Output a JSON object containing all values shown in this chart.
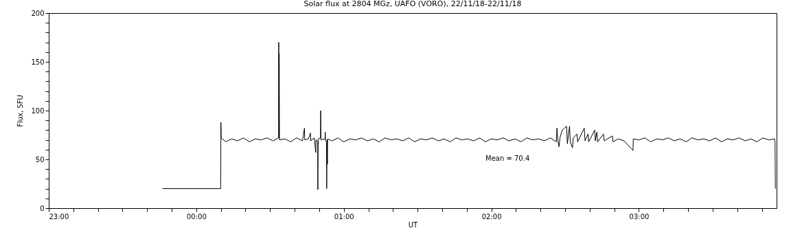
{
  "chart_data": {
    "type": "line",
    "title": "Solar flux at 2804 MGz, UAFO (VORO),  22/11/18-22/11/18",
    "xlabel": "UT",
    "ylabel": "Flux, SFU",
    "annotations": [
      "Mean =    70.4"
    ],
    "xlim": [
      "--11-21T23:00",
      "--11-22T03:56"
    ],
    "ylim": [
      0,
      200
    ],
    "xticks": [
      {
        "value": "--11-21T23:00",
        "label": "23:00"
      },
      {
        "value": "--11-21T23:10",
        "label": null
      },
      {
        "value": "--11-21T23:20",
        "label": null
      },
      {
        "value": "--11-21T23:30",
        "label": null
      },
      {
        "value": "--11-21T23:40",
        "label": null
      },
      {
        "value": "--11-21T23:50",
        "label": null
      },
      {
        "value": "--11-22T00:00",
        "label": "00:00"
      },
      {
        "value": "--11-22T00:10",
        "label": null
      },
      {
        "value": "--11-22T00:20",
        "label": null
      },
      {
        "value": "--11-22T00:30",
        "label": null
      },
      {
        "value": "--11-22T00:40",
        "label": null
      },
      {
        "value": "--11-22T00:50",
        "label": null
      },
      {
        "value": "--11-22T01:00",
        "label": "01:00"
      },
      {
        "value": "--11-22T01:10",
        "label": null
      },
      {
        "value": "--11-22T01:20",
        "label": null
      },
      {
        "value": "--11-22T01:30",
        "label": null
      },
      {
        "value": "--11-22T01:40",
        "label": null
      },
      {
        "value": "--11-22T01:50",
        "label": null
      },
      {
        "value": "--11-22T02:00",
        "label": "02:00"
      },
      {
        "value": "--11-22T02:10",
        "label": null
      },
      {
        "value": "--11-22T02:20",
        "label": null
      },
      {
        "value": "--11-22T02:30",
        "label": null
      },
      {
        "value": "--11-22T02:40",
        "label": null
      },
      {
        "value": "--11-22T02:50",
        "label": null
      },
      {
        "value": "--11-22T03:00",
        "label": "03:00"
      },
      {
        "value": "--11-22T03:10",
        "label": null
      },
      {
        "value": "--11-22T03:20",
        "label": null
      },
      {
        "value": "--11-22T03:30",
        "label": null
      },
      {
        "value": "--11-22T03:40",
        "label": null
      },
      {
        "value": "--11-22T03:50",
        "label": null
      }
    ],
    "yticks": [
      0,
      {
        "value": 10,
        "label": null
      },
      {
        "value": 20,
        "label": null
      },
      {
        "value": 30,
        "label": null
      },
      {
        "value": 40,
        "label": null
      },
      50,
      {
        "value": 60,
        "label": null
      },
      {
        "value": 70,
        "label": null
      },
      {
        "value": 80,
        "label": null
      },
      {
        "value": 90,
        "label": null
      },
      100,
      {
        "value": 110,
        "label": null
      },
      {
        "value": 120,
        "label": null
      },
      {
        "value": 130,
        "label": null
      },
      {
        "value": 140,
        "label": null
      },
      150,
      {
        "value": 160,
        "label": null
      },
      {
        "value": 170,
        "label": null
      },
      {
        "value": 180,
        "label": null
      },
      {
        "value": 190,
        "label": null
      },
      200
    ],
    "grid": false,
    "series": [
      {
        "color": "#000000",
        "x": [
          "--11-21T23:46:12",
          "--11-22T00:09:54",
          "--11-22T00:09:58",
          "--11-22T00:10:01",
          "--11-22T00:10:08",
          "--11-22T00:12:00",
          "--11-22T00:14:24",
          "--11-22T00:16:48",
          "--11-22T00:19:12",
          "--11-22T00:21:36",
          "--11-22T00:24:00",
          "--11-22T00:26:24",
          "--11-22T00:28:48",
          "--11-22T00:31:12",
          "--11-22T00:33:29",
          "--11-22T00:33:32",
          "--11-22T00:33:40",
          "--11-22T00:33:43",
          "--11-22T00:33:50",
          "--11-22T00:36:00",
          "--11-22T00:38:24",
          "--11-22T00:40:48",
          "--11-22T00:43:12",
          "--11-22T00:43:59",
          "--11-22T00:44:06",
          "--11-22T00:45:36",
          "--11-22T00:46:26",
          "--11-22T00:46:34",
          "--11-22T00:48:00",
          "--11-22T00:48:36",
          "--11-22T00:48:43",
          "--11-22T00:49:23",
          "--11-22T00:49:26",
          "--11-22T00:49:34",
          "--11-22T00:50:31",
          "--11-22T00:50:35",
          "--11-22T00:50:42",
          "--11-22T00:52:23",
          "--11-22T00:52:26",
          "--11-22T00:52:34",
          "--11-22T00:52:59",
          "--11-22T00:53:02",
          "--11-22T00:53:10",
          "--11-22T00:53:20",
          "--11-22T00:53:24",
          "--11-22T00:55:12",
          "--11-22T00:57:36",
          "--11-22T01:00:00",
          "--11-22T01:02:24",
          "--11-22T01:04:48",
          "--11-22T01:07:12",
          "--11-22T01:09:36",
          "--11-22T01:12:00",
          "--11-22T01:14:24",
          "--11-22T01:16:48",
          "--11-22T01:19:12",
          "--11-22T01:21:36",
          "--11-22T01:24:00",
          "--11-22T01:26:24",
          "--11-22T01:28:48",
          "--11-22T01:31:12",
          "--11-22T01:33:36",
          "--11-22T01:36:00",
          "--11-22T01:38:24",
          "--11-22T01:40:48",
          "--11-22T01:43:12",
          "--11-22T01:45:36",
          "--11-22T01:48:00",
          "--11-22T01:50:24",
          "--11-22T01:52:48",
          "--11-22T01:55:12",
          "--11-22T01:57:36",
          "--11-22T02:00:00",
          "--11-22T02:02:24",
          "--11-22T02:04:48",
          "--11-22T02:07:12",
          "--11-22T02:09:36",
          "--11-22T02:12:00",
          "--11-22T02:14:24",
          "--11-22T02:16:48",
          "--11-22T02:19:12",
          "--11-22T02:21:36",
          "--11-22T02:24:00",
          "--11-22T02:26:24",
          "--11-22T02:26:42",
          "--11-22T02:27:00",
          "--11-22T02:27:32",
          "--11-22T02:27:54",
          "--11-22T02:28:48",
          "--11-22T02:30:36",
          "--11-22T02:30:54",
          "--11-22T02:31:48",
          "--11-22T02:32:06",
          "--11-22T02:33:00",
          "--11-22T02:33:18",
          "--11-22T02:34:48",
          "--11-22T02:35:06",
          "--11-22T02:37:48",
          "--11-22T02:38:06",
          "--11-22T02:39:18",
          "--11-22T02:39:36",
          "--11-22T02:42:00",
          "--11-22T02:42:18",
          "--11-22T02:42:54",
          "--11-22T02:43:12",
          "--11-22T02:45:36",
          "--11-22T02:45:54",
          "--11-22T02:49:12",
          "--11-22T02:49:30",
          "--11-22T02:51:36",
          "--11-22T02:54:00",
          "--11-22T02:57:36",
          "--11-22T02:57:43",
          "--11-22T03:00:00",
          "--11-22T03:02:24",
          "--11-22T03:04:48",
          "--11-22T03:07:12",
          "--11-22T03:09:36",
          "--11-22T03:12:00",
          "--11-22T03:14:24",
          "--11-22T03:16:48",
          "--11-22T03:19:12",
          "--11-22T03:21:36",
          "--11-22T03:24:00",
          "--11-22T03:26:24",
          "--11-22T03:28:48",
          "--11-22T03:31:12",
          "--11-22T03:33:36",
          "--11-22T03:36:00",
          "--11-22T03:38:24",
          "--11-22T03:40:48",
          "--11-22T03:43:12",
          "--11-22T03:45:36",
          "--11-22T03:48:00",
          "--11-22T03:50:24",
          "--11-22T03:52:48",
          "--11-22T03:55:12",
          "--11-22T03:55:23",
          "--11-22T03:55:30"
        ],
        "values": [
          20,
          20,
          40,
          88,
          72,
          68,
          71,
          69,
          72,
          68,
          71,
          70,
          72,
          69,
          72,
          170,
          72,
          158,
          70,
          71,
          68,
          72,
          69,
          82,
          70,
          71,
          77,
          69,
          72,
          57,
          70,
          68,
          19,
          71,
          72,
          100,
          70,
          71,
          78,
          69,
          68,
          20,
          70,
          45,
          71,
          69,
          72,
          68,
          71,
          70,
          72,
          69,
          71,
          68,
          72,
          70,
          71,
          69,
          72,
          68,
          71,
          70,
          72,
          69,
          71,
          68,
          72,
          70,
          71,
          69,
          72,
          68,
          71,
          70,
          72,
          69,
          71,
          68,
          72,
          70,
          71,
          69,
          72,
          68,
          82,
          70,
          63,
          72,
          80,
          84,
          66,
          84,
          68,
          62,
          72,
          76,
          68,
          82,
          69,
          76,
          68,
          80,
          69,
          78,
          68,
          76,
          69,
          74,
          68,
          71,
          69,
          59,
          71,
          70,
          72,
          68,
          71,
          70,
          72,
          69,
          71,
          68,
          72,
          70,
          71,
          69,
          72,
          68,
          71,
          70,
          72,
          69,
          71,
          68,
          72,
          70,
          71,
          68,
          20
        ]
      }
    ]
  }
}
